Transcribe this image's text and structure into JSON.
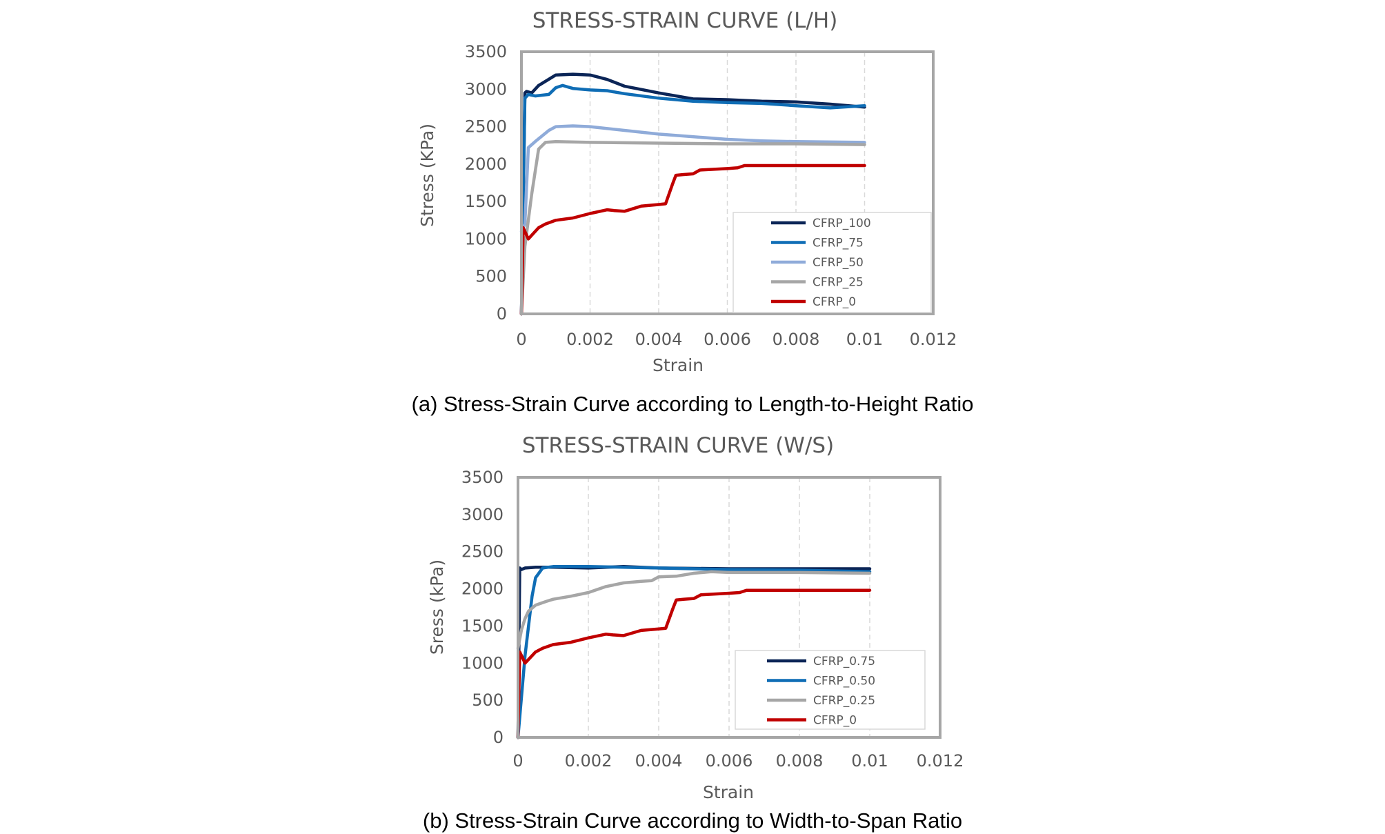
{
  "chart_data": [
    {
      "type": "line",
      "title": "STRESS-STRAIN CURVE (L/H)",
      "xlabel": "Strain",
      "ylabel": "Stress (KPa)",
      "caption": "(a) Stress-Strain Curve according to Length-to-Height Ratio",
      "xlim": [
        0,
        0.012
      ],
      "ylim": [
        0,
        3500
      ],
      "xticks": [
        "0",
        "0.002",
        "0.004",
        "0.006",
        "0.008",
        "0.01",
        "0.012"
      ],
      "yticks": [
        "0",
        "500",
        "1000",
        "1500",
        "2000",
        "2500",
        "3000",
        "3500"
      ],
      "grid": "vertical dashed",
      "legend_position": "bottom-right",
      "series": [
        {
          "name": "CFRP_100",
          "color": "#0b2557",
          "x": [
            0,
            0.0001,
            0.00015,
            0.0003,
            0.0005,
            0.001,
            0.0015,
            0.002,
            0.0025,
            0.003,
            0.004,
            0.005,
            0.006,
            0.007,
            0.008,
            0.009,
            0.01
          ],
          "y": [
            0,
            2950,
            2970,
            2950,
            3050,
            3190,
            3200,
            3190,
            3130,
            3040,
            2950,
            2870,
            2860,
            2840,
            2830,
            2800,
            2760
          ]
        },
        {
          "name": "CFRP_75",
          "color": "#0f6db5",
          "x": [
            0,
            0.0001,
            0.0002,
            0.0004,
            0.0008,
            0.001,
            0.0012,
            0.0015,
            0.002,
            0.0025,
            0.003,
            0.004,
            0.005,
            0.006,
            0.007,
            0.008,
            0.009,
            0.01
          ],
          "y": [
            0,
            2880,
            2930,
            2910,
            2930,
            3020,
            3050,
            3010,
            2990,
            2980,
            2940,
            2880,
            2840,
            2820,
            2810,
            2780,
            2750,
            2780
          ]
        },
        {
          "name": "CFRP_50",
          "color": "#8fabd9",
          "x": [
            0,
            0.0001,
            0.0002,
            0.0004,
            0.0008,
            0.001,
            0.0015,
            0.002,
            0.004,
            0.006,
            0.007,
            0.008,
            0.01
          ],
          "y": [
            1100,
            1200,
            2220,
            2300,
            2450,
            2500,
            2510,
            2500,
            2400,
            2330,
            2310,
            2300,
            2290
          ]
        },
        {
          "name": "CFRP_25",
          "color": "#a6a6a6",
          "x": [
            0,
            0.0001,
            0.0003,
            0.0005,
            0.0007,
            0.001,
            0.002,
            0.004,
            0.006,
            0.008,
            0.01
          ],
          "y": [
            0,
            900,
            1600,
            2200,
            2290,
            2300,
            2290,
            2280,
            2270,
            2270,
            2260
          ]
        },
        {
          "name": "CFRP_0",
          "color": "#c00000",
          "x": [
            0,
            5e-05,
            0.0001,
            0.0002,
            0.0003,
            0.0005,
            0.0007,
            0.001,
            0.0015,
            0.002,
            0.0025,
            0.0027,
            0.003,
            0.0035,
            0.004,
            0.0042,
            0.0044,
            0.0045,
            0.0047,
            0.005,
            0.0052,
            0.006,
            0.0063,
            0.0065,
            0.008,
            0.01
          ],
          "y": [
            0,
            1150,
            1100,
            1000,
            1050,
            1150,
            1200,
            1250,
            1280,
            1340,
            1390,
            1380,
            1370,
            1440,
            1460,
            1470,
            1730,
            1850,
            1860,
            1870,
            1920,
            1940,
            1950,
            1980,
            1980,
            1980
          ]
        }
      ]
    },
    {
      "type": "line",
      "title": "STRESS-STRAIN CURVE (W/S)",
      "xlabel": "Strain",
      "ylabel": "Sress (kPa)",
      "caption": "(b) Stress-Strain Curve according to Width-to-Span Ratio",
      "xlim": [
        0,
        0.012
      ],
      "ylim": [
        0,
        3500
      ],
      "xticks": [
        "0",
        "0.002",
        "0.004",
        "0.006",
        "0.008",
        "0.01",
        "0.012"
      ],
      "yticks": [
        "0",
        "500",
        "1000",
        "1500",
        "2000",
        "2500",
        "3000",
        "3500"
      ],
      "grid": "vertical dashed",
      "legend_position": "bottom-right",
      "series": [
        {
          "name": "CFRP_0.75",
          "color": "#0b2557",
          "x": [
            0,
            5e-05,
            0.0001,
            0.0002,
            0.0005,
            0.001,
            0.002,
            0.003,
            0.004,
            0.006,
            0.008,
            0.01
          ],
          "y": [
            0,
            2280,
            2260,
            2280,
            2290,
            2290,
            2280,
            2300,
            2280,
            2270,
            2270,
            2270
          ]
        },
        {
          "name": "CFRP_0.50",
          "color": "#0f6db5",
          "x": [
            0,
            0.0002,
            0.0004,
            0.0005,
            0.0007,
            0.001,
            0.002,
            0.004,
            0.006,
            0.008,
            0.01
          ],
          "y": [
            0,
            1100,
            1900,
            2150,
            2280,
            2300,
            2300,
            2280,
            2260,
            2250,
            2230
          ]
        },
        {
          "name": "CFRP_0.25",
          "color": "#a6a6a6",
          "x": [
            0,
            0.0001,
            0.0002,
            0.0003,
            0.0005,
            0.0008,
            0.001,
            0.0015,
            0.002,
            0.0025,
            0.003,
            0.0035,
            0.0038,
            0.004,
            0.0045,
            0.005,
            0.0055,
            0.006,
            0.008,
            0.01
          ],
          "y": [
            1200,
            1450,
            1600,
            1700,
            1780,
            1830,
            1860,
            1900,
            1950,
            2030,
            2080,
            2100,
            2110,
            2160,
            2170,
            2210,
            2230,
            2220,
            2220,
            2210
          ]
        },
        {
          "name": "CFRP_0",
          "color": "#c00000",
          "x": [
            0,
            5e-05,
            0.0001,
            0.0002,
            0.0003,
            0.0005,
            0.0007,
            0.001,
            0.0015,
            0.002,
            0.0025,
            0.0027,
            0.003,
            0.0035,
            0.004,
            0.0042,
            0.0044,
            0.0045,
            0.0047,
            0.005,
            0.0052,
            0.006,
            0.0063,
            0.0065,
            0.008,
            0.01
          ],
          "y": [
            0,
            1150,
            1100,
            1000,
            1050,
            1150,
            1200,
            1250,
            1280,
            1340,
            1390,
            1380,
            1370,
            1440,
            1460,
            1470,
            1730,
            1850,
            1860,
            1870,
            1920,
            1940,
            1950,
            1980,
            1980,
            1980
          ]
        }
      ]
    }
  ]
}
